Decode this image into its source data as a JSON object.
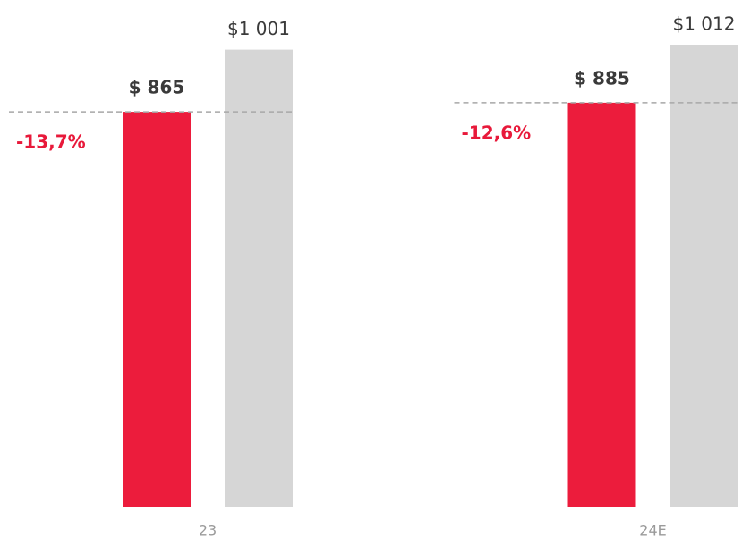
{
  "chart_data": {
    "type": "bar",
    "categories": [
      "23",
      "24E"
    ],
    "series": [
      {
        "color": "#ec1c3c",
        "values": [
          865,
          885
        ],
        "value_labels": [
          "$ 865",
          "$ 885"
        ]
      },
      {
        "color": "#d6d6d6",
        "values": [
          1001,
          1012
        ],
        "value_labels": [
          "$1 001",
          "$1 012"
        ]
      }
    ],
    "annotations": [
      "-13,7%",
      "-12,6%"
    ]
  }
}
